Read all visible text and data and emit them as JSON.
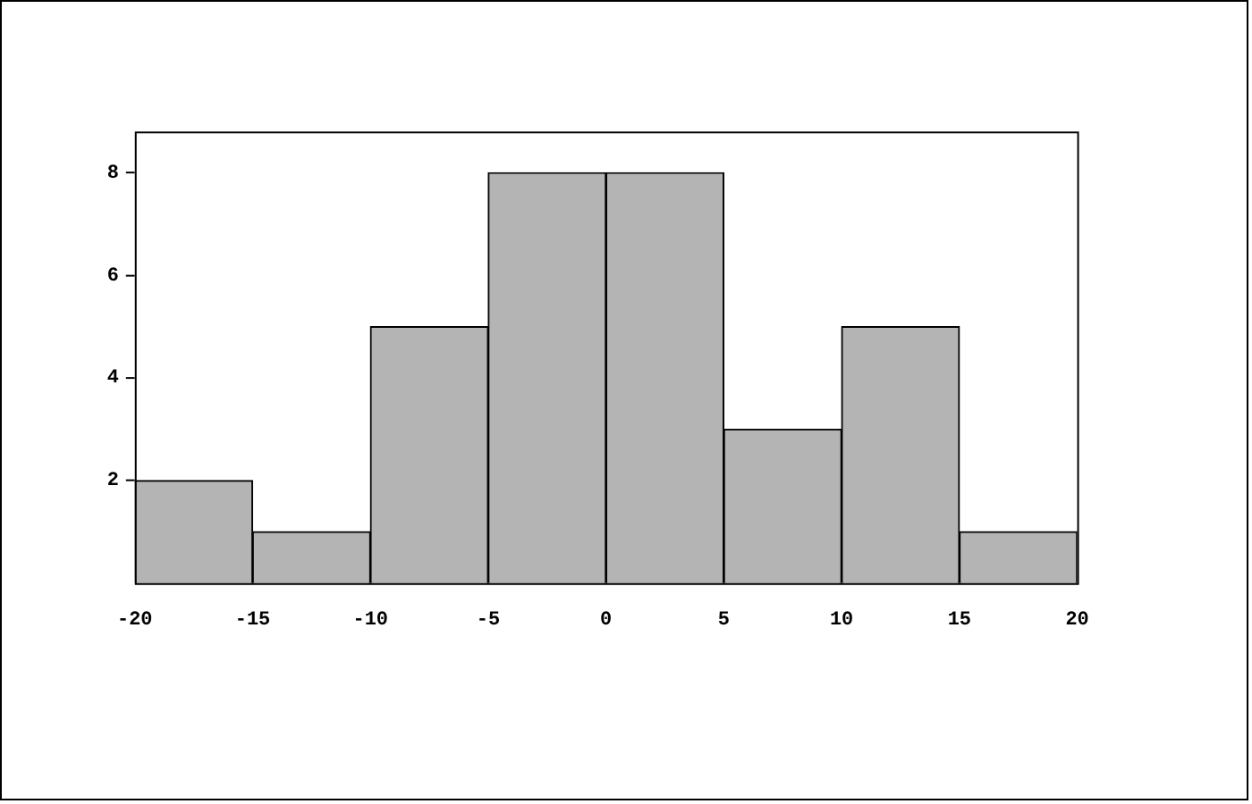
{
  "chart_data": {
    "type": "histogram",
    "bins": [
      -20,
      -15,
      -10,
      -5,
      0,
      5,
      10,
      15,
      20
    ],
    "values": [
      2,
      1,
      5,
      8,
      8,
      3,
      5,
      1
    ],
    "color": "#b4b4b4",
    "xlim": [
      -20,
      20
    ],
    "xticks": [
      -20,
      -15,
      -10,
      -5,
      0,
      5,
      10,
      15,
      20
    ],
    "ylim": [
      0,
      8.8
    ],
    "yticks": [
      2,
      4,
      6,
      8
    ],
    "grid": false,
    "legend": false
  }
}
